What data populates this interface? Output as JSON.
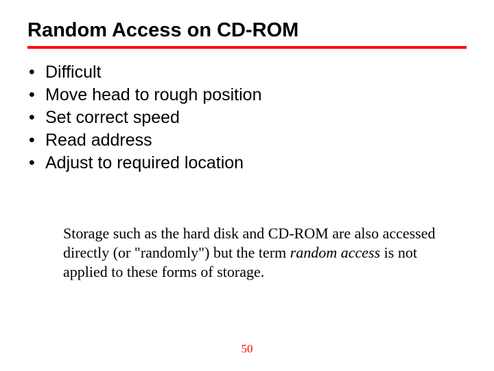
{
  "colors": {
    "rule": "#ff0000",
    "pagenum": "#ff0000",
    "text": "#000000",
    "background": "#ffffff"
  },
  "title": "Random Access on CD-ROM",
  "bullets": [
    "Difficult",
    "Move head to rough position",
    "Set correct speed",
    "Read address",
    "Adjust to required location"
  ],
  "note": {
    "pre": "Storage such as the hard disk and CD-ROM are also accessed directly (or \"randomly\") but the term ",
    "italic": "random access",
    "post": " is not applied to these forms of storage."
  },
  "page_number": "50"
}
